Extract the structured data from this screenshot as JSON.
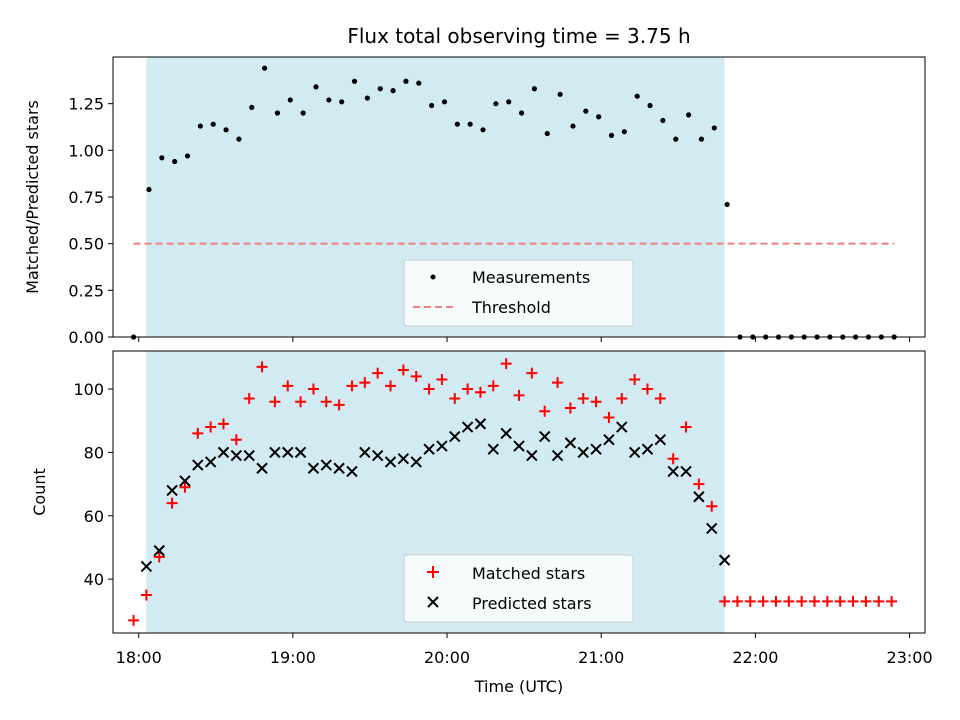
{
  "chart_data": [
    {
      "type": "scatter",
      "title": "Flux total observing time = 3.75 h",
      "xlabel": "",
      "ylabel": "Matched/Predicted stars",
      "ylim": [
        0,
        1.5
      ],
      "yticks": [
        "0.00",
        "0.25",
        "0.50",
        "0.75",
        "1.00",
        "1.25"
      ],
      "xlim": [
        "17:50",
        "23:06"
      ],
      "shaded_interval": [
        "18:03",
        "21:48"
      ],
      "shade_color": "#add8e6",
      "threshold": {
        "value": 0.5,
        "x_range": [
          "17:58",
          "22:54"
        ],
        "label": "Threshold",
        "color": "#f08080"
      },
      "legend": {
        "placement": "lower center",
        "entries": [
          "Measurements",
          "Threshold"
        ]
      },
      "series": [
        {
          "name": "Measurements",
          "marker": "dot",
          "color": "#000000",
          "x": [
            "17:58",
            "18:04",
            "18:09",
            "18:14",
            "18:19",
            "18:24",
            "18:29",
            "18:34",
            "18:39",
            "18:44",
            "18:49",
            "18:54",
            "18:59",
            "19:04",
            "19:09",
            "19:14",
            "19:19",
            "19:24",
            "19:29",
            "19:34",
            "19:39",
            "19:44",
            "19:49",
            "19:54",
            "19:59",
            "20:04",
            "20:09",
            "20:14",
            "20:19",
            "20:24",
            "20:29",
            "20:34",
            "20:39",
            "20:44",
            "20:49",
            "20:54",
            "20:59",
            "21:04",
            "21:09",
            "21:14",
            "21:19",
            "21:24",
            "21:29",
            "21:34",
            "21:39",
            "21:44",
            "21:49",
            "21:54",
            "21:59",
            "22:04",
            "22:09",
            "22:14",
            "22:19",
            "22:24",
            "22:29",
            "22:34",
            "22:39",
            "22:44",
            "22:49",
            "22:54"
          ],
          "y": [
            0.0,
            0.79,
            0.96,
            0.94,
            0.97,
            1.13,
            1.14,
            1.11,
            1.06,
            1.23,
            1.44,
            1.2,
            1.27,
            1.2,
            1.34,
            1.27,
            1.26,
            1.37,
            1.28,
            1.33,
            1.32,
            1.37,
            1.36,
            1.24,
            1.26,
            1.14,
            1.14,
            1.11,
            1.25,
            1.26,
            1.2,
            1.33,
            1.09,
            1.3,
            1.13,
            1.21,
            1.18,
            1.08,
            1.1,
            1.29,
            1.24,
            1.16,
            1.06,
            1.19,
            1.06,
            1.12,
            0.71,
            0.0,
            0.0,
            0.0,
            0.0,
            0.0,
            0.0,
            0.0,
            0.0,
            0.0,
            0.0,
            0.0,
            0.0,
            0.0
          ]
        }
      ]
    },
    {
      "type": "scatter",
      "title": "",
      "xlabel": "Time (UTC)",
      "ylabel": "Count",
      "ylim": [
        23,
        112
      ],
      "yticks": [
        "40",
        "60",
        "80",
        "100"
      ],
      "xlim": [
        "17:50",
        "23:06"
      ],
      "xticks": [
        "18:00",
        "19:00",
        "20:00",
        "21:00",
        "22:00",
        "23:00"
      ],
      "shaded_interval": [
        "18:03",
        "21:48"
      ],
      "shade_color": "#add8e6",
      "legend": {
        "placement": "lower center",
        "entries": [
          "Matched stars",
          "Predicted stars"
        ]
      },
      "series": [
        {
          "name": "Matched stars",
          "marker": "plus",
          "color": "#ff0000",
          "x": [
            "17:58",
            "18:03",
            "18:08",
            "18:13",
            "18:18",
            "18:23",
            "18:28",
            "18:33",
            "18:38",
            "18:43",
            "18:48",
            "18:53",
            "18:58",
            "19:03",
            "19:08",
            "19:13",
            "19:18",
            "19:23",
            "19:28",
            "19:33",
            "19:38",
            "19:43",
            "19:48",
            "19:53",
            "19:58",
            "20:03",
            "20:08",
            "20:13",
            "20:18",
            "20:23",
            "20:28",
            "20:33",
            "20:38",
            "20:43",
            "20:48",
            "20:53",
            "20:58",
            "21:03",
            "21:08",
            "21:13",
            "21:18",
            "21:23",
            "21:28",
            "21:33",
            "21:38",
            "21:43",
            "21:48",
            "21:53",
            "21:58",
            "22:03",
            "22:08",
            "22:13",
            "22:18",
            "22:23",
            "22:28",
            "22:33",
            "22:38",
            "22:43",
            "22:48",
            "22:53"
          ],
          "y": [
            27,
            35,
            47,
            64,
            69,
            86,
            88,
            89,
            84,
            97,
            107,
            96,
            101,
            96,
            100,
            96,
            95,
            101,
            102,
            105,
            101,
            106,
            104,
            100,
            103,
            97,
            100,
            99,
            101,
            108,
            98,
            105,
            93,
            102,
            94,
            97,
            96,
            91,
            97,
            103,
            100,
            97,
            78,
            88,
            70,
            63,
            33,
            33,
            33,
            33,
            33,
            33,
            33,
            33,
            33,
            33,
            33,
            33,
            33,
            33
          ]
        },
        {
          "name": "Predicted stars",
          "marker": "x",
          "color": "#000000",
          "x": [
            "18:03",
            "18:08",
            "18:13",
            "18:18",
            "18:23",
            "18:28",
            "18:33",
            "18:38",
            "18:43",
            "18:48",
            "18:53",
            "18:58",
            "19:03",
            "19:08",
            "19:13",
            "19:18",
            "19:23",
            "19:28",
            "19:33",
            "19:38",
            "19:43",
            "19:48",
            "19:53",
            "19:58",
            "20:03",
            "20:08",
            "20:13",
            "20:18",
            "20:23",
            "20:28",
            "20:33",
            "20:38",
            "20:43",
            "20:48",
            "20:53",
            "20:58",
            "21:03",
            "21:08",
            "21:13",
            "21:18",
            "21:23",
            "21:28",
            "21:33",
            "21:38",
            "21:43",
            "21:48"
          ],
          "y": [
            44,
            49,
            68,
            71,
            76,
            77,
            80,
            79,
            79,
            75,
            80,
            80,
            80,
            75,
            76,
            75,
            74,
            80,
            79,
            77,
            78,
            77,
            81,
            82,
            85,
            88,
            89,
            81,
            86,
            82,
            79,
            85,
            79,
            83,
            80,
            81,
            84,
            88,
            80,
            81,
            84,
            74,
            74,
            66,
            56,
            46
          ]
        }
      ]
    }
  ]
}
